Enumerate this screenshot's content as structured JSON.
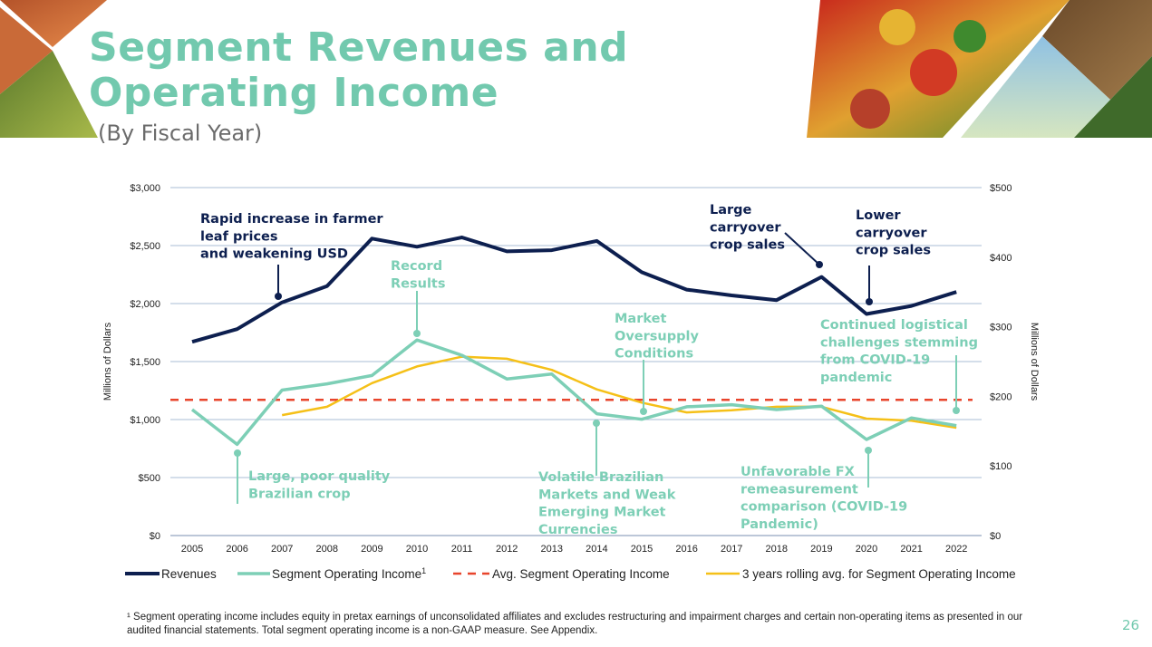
{
  "header": {
    "title_line1": "Segment Revenues and",
    "title_line2": "Operating Income",
    "subtitle": "(By Fiscal Year)"
  },
  "footnote": "¹ Segment operating income includes equity in pretax earnings of unconsolidated affiliates and excludes restructuring and impairment charges and certain non-operating items as presented in our audited financial statements. Total segment operating income is a non-GAAP measure. See Appendix.",
  "page_number": "26",
  "colors": {
    "revenues": "#0d1f4f",
    "segment": "#7dcfb6",
    "avg": "#e8452c",
    "rolling": "#f5c018",
    "title": "#72c9ae"
  },
  "chart_data": {
    "type": "line",
    "x": [
      "2005",
      "2006",
      "2007",
      "2008",
      "2009",
      "2010",
      "2011",
      "2012",
      "2013",
      "2014",
      "2015",
      "2016",
      "2017",
      "2018",
      "2019",
      "2020",
      "2021",
      "2022"
    ],
    "left_axis": {
      "title": "Millions of Dollars",
      "ylim": [
        0,
        3000
      ],
      "ticks": [
        0,
        500,
        1000,
        1500,
        2000,
        2500,
        3000
      ],
      "tick_labels": [
        "$0",
        "$500",
        "$1,000",
        "$1,500",
        "$2,000",
        "$2,500",
        "$3,000"
      ]
    },
    "right_axis": {
      "title": "Millions of Dollars",
      "ylim": [
        0,
        500
      ],
      "ticks": [
        0,
        100,
        200,
        300,
        400,
        500
      ],
      "tick_labels": [
        "$0",
        "$100",
        "$200",
        "$300",
        "$400",
        "$500"
      ]
    },
    "series": [
      {
        "name": "Revenues",
        "axis": "left",
        "style": "solid",
        "values": [
          1670,
          1780,
          2010,
          2150,
          2560,
          2490,
          2570,
          2450,
          2460,
          2540,
          2270,
          2120,
          2070,
          2030,
          2230,
          1910,
          1980,
          2100
        ]
      },
      {
        "name": "Segment Operating Income",
        "legend_label": "Segment Operating Income",
        "footnote_mark": "1",
        "axis": "right",
        "style": "solid",
        "values": [
          181,
          131,
          209,
          218,
          230,
          281,
          259,
          225,
          232,
          175,
          167,
          185,
          188,
          181,
          186,
          138,
          169,
          158
        ]
      },
      {
        "name": "Avg. Segment Operating Income",
        "axis": "right",
        "style": "dashed",
        "values": [
          195,
          195,
          195,
          195,
          195,
          195,
          195,
          195,
          195,
          195,
          195,
          195,
          195,
          195,
          195,
          195,
          195,
          195
        ]
      },
      {
        "name": "3 years rolling avg. for Segment Operating Income",
        "axis": "right",
        "style": "solid",
        "values": [
          null,
          null,
          173,
          185,
          219,
          243,
          257,
          254,
          238,
          210,
          191,
          177,
          180,
          185,
          185,
          168,
          165,
          155
        ]
      }
    ],
    "annotations": [
      {
        "lines": [
          "Rapid increase in farmer",
          "leaf prices",
          "and weakening USD"
        ],
        "color": "dark",
        "year": "2007",
        "series": "Revenues"
      },
      {
        "lines": [
          "Record",
          "Results"
        ],
        "color": "teal",
        "year": "2010",
        "series": "Segment Operating Income"
      },
      {
        "lines": [
          "Market",
          "Oversupply",
          "Conditions"
        ],
        "color": "teal",
        "year": "2015",
        "series": "Segment Operating Income"
      },
      {
        "lines": [
          "Large",
          "carryover",
          "crop sales"
        ],
        "color": "dark",
        "year": "2019",
        "series": "Revenues"
      },
      {
        "lines": [
          "Lower",
          "carryover",
          "crop sales"
        ],
        "color": "dark",
        "year": "2020",
        "series": "Revenues"
      },
      {
        "lines": [
          "Continued logistical",
          "challenges stemming",
          "from COVID-19",
          "pandemic"
        ],
        "color": "teal",
        "year": "2022",
        "series": "Segment Operating Income"
      },
      {
        "lines": [
          "Large, poor quality",
          "Brazilian crop"
        ],
        "color": "teal",
        "year": "2006",
        "series": "Segment Operating Income"
      },
      {
        "lines": [
          "Volatile Brazilian",
          "Markets and Weak",
          "Emerging Market",
          "Currencies"
        ],
        "color": "teal",
        "year": "2014",
        "series": "Segment Operating Income"
      },
      {
        "lines": [
          "Unfavorable FX",
          "remeasurement",
          "comparison (COVID-19",
          "Pandemic)"
        ],
        "color": "teal",
        "year": "2020",
        "series": "Segment Operating Income"
      }
    ],
    "legend": [
      "Revenues",
      "Segment Operating Income",
      "Avg. Segment Operating Income",
      "3 years rolling avg. for Segment Operating Income"
    ],
    "grid": true,
    "legend_position": "bottom"
  }
}
